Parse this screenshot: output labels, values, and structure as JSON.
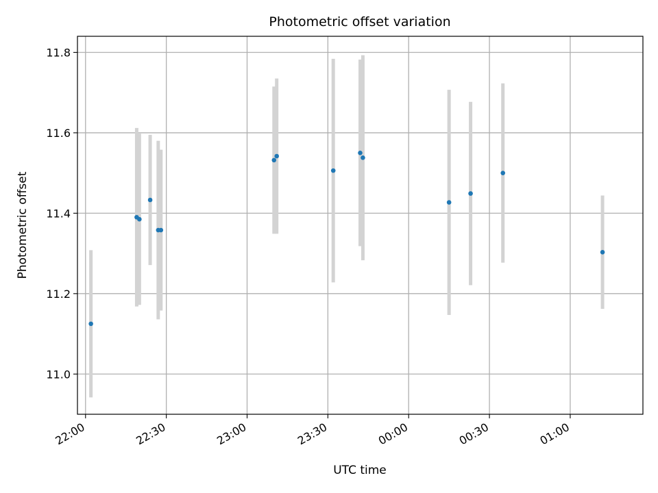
{
  "chart_data": {
    "type": "scatter",
    "title": "Photometric offset variation",
    "xlabel": "UTC time",
    "ylabel": "Photometric offset",
    "x_tick_labels": [
      "22:00",
      "22:30",
      "23:00",
      "23:30",
      "00:00",
      "00:30",
      "01:00"
    ],
    "y_tick_labels": [
      "11.0",
      "11.2",
      "11.4",
      "11.6",
      "11.8"
    ],
    "xlim": [
      "21:57",
      "01:27"
    ],
    "ylim": [
      10.9,
      11.84
    ],
    "grid": true,
    "point_color": "#1f77b4",
    "errorbar_color": "#d3d3d3",
    "points": [
      {
        "x": "22:02",
        "y": 11.125,
        "err": 0.183
      },
      {
        "x": "22:19",
        "y": 11.39,
        "err": 0.222
      },
      {
        "x": "22:20",
        "y": 11.385,
        "err": 0.213
      },
      {
        "x": "22:24",
        "y": 11.433,
        "err": 0.162
      },
      {
        "x": "22:27",
        "y": 11.358,
        "err": 0.222
      },
      {
        "x": "22:28",
        "y": 11.358,
        "err": 0.2
      },
      {
        "x": "23:10",
        "y": 11.532,
        "err": 0.183
      },
      {
        "x": "23:11",
        "y": 11.542,
        "err": 0.193
      },
      {
        "x": "23:32",
        "y": 11.506,
        "err": 0.278
      },
      {
        "x": "23:42",
        "y": 11.55,
        "err": 0.232
      },
      {
        "x": "23:43",
        "y": 11.538,
        "err": 0.255
      },
      {
        "x": "00:15",
        "y": 11.427,
        "err": 0.28
      },
      {
        "x": "00:23",
        "y": 11.449,
        "err": 0.228
      },
      {
        "x": "00:35",
        "y": 11.5,
        "err": 0.223
      },
      {
        "x": "01:12",
        "y": 11.303,
        "err": 0.141
      }
    ]
  }
}
